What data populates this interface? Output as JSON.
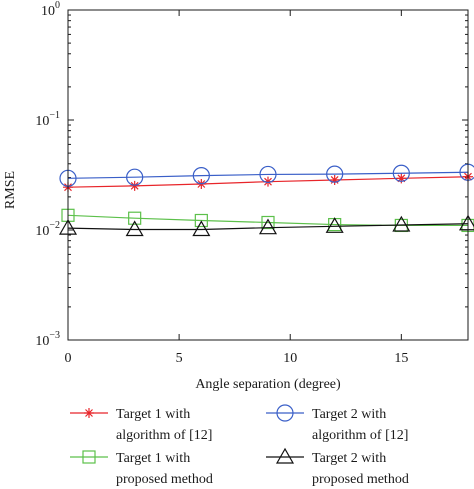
{
  "chart_data": {
    "type": "line",
    "xlabel": "Angle separation (degree)",
    "ylabel": "RMSE",
    "yscale": "log",
    "xlim": [
      0,
      18
    ],
    "ylim": [
      0.001,
      1
    ],
    "xticks": [
      0,
      5,
      10,
      15
    ],
    "yticks": [
      {
        "value": 0.001,
        "base": "10",
        "exp": "−3"
      },
      {
        "value": 0.01,
        "base": "10",
        "exp": "−2"
      },
      {
        "value": 0.1,
        "base": "10",
        "exp": "−1"
      },
      {
        "value": 1,
        "base": "10",
        "exp": "0"
      }
    ],
    "x": [
      0,
      3,
      6,
      9,
      12,
      15,
      18
    ],
    "series": [
      {
        "name_lines": [
          "Target 1 with",
          "algorithm of [12]"
        ],
        "color": "#e8252a",
        "marker": "asterisk",
        "values": [
          0.0245,
          0.0252,
          0.0262,
          0.0275,
          0.0285,
          0.0295,
          0.0305
        ]
      },
      {
        "name_lines": [
          "Target 2 with",
          "algorithm of [12]"
        ],
        "color": "#3a5fc8",
        "marker": "circle",
        "values": [
          0.0295,
          0.0302,
          0.0312,
          0.032,
          0.0322,
          0.0328,
          0.0335
        ]
      },
      {
        "name_lines": [
          "Target 1 with",
          "proposed method"
        ],
        "color": "#5cc04a",
        "marker": "square",
        "values": [
          0.0136,
          0.0128,
          0.0122,
          0.0117,
          0.0112,
          0.011,
          0.011
        ]
      },
      {
        "name_lines": [
          "Target 2 with",
          "proposed method"
        ],
        "color": "#111111",
        "marker": "triangle",
        "values": [
          0.0104,
          0.0101,
          0.0101,
          0.0105,
          0.0108,
          0.0111,
          0.0114
        ]
      }
    ],
    "legend_position": "bottom",
    "grid": false
  }
}
